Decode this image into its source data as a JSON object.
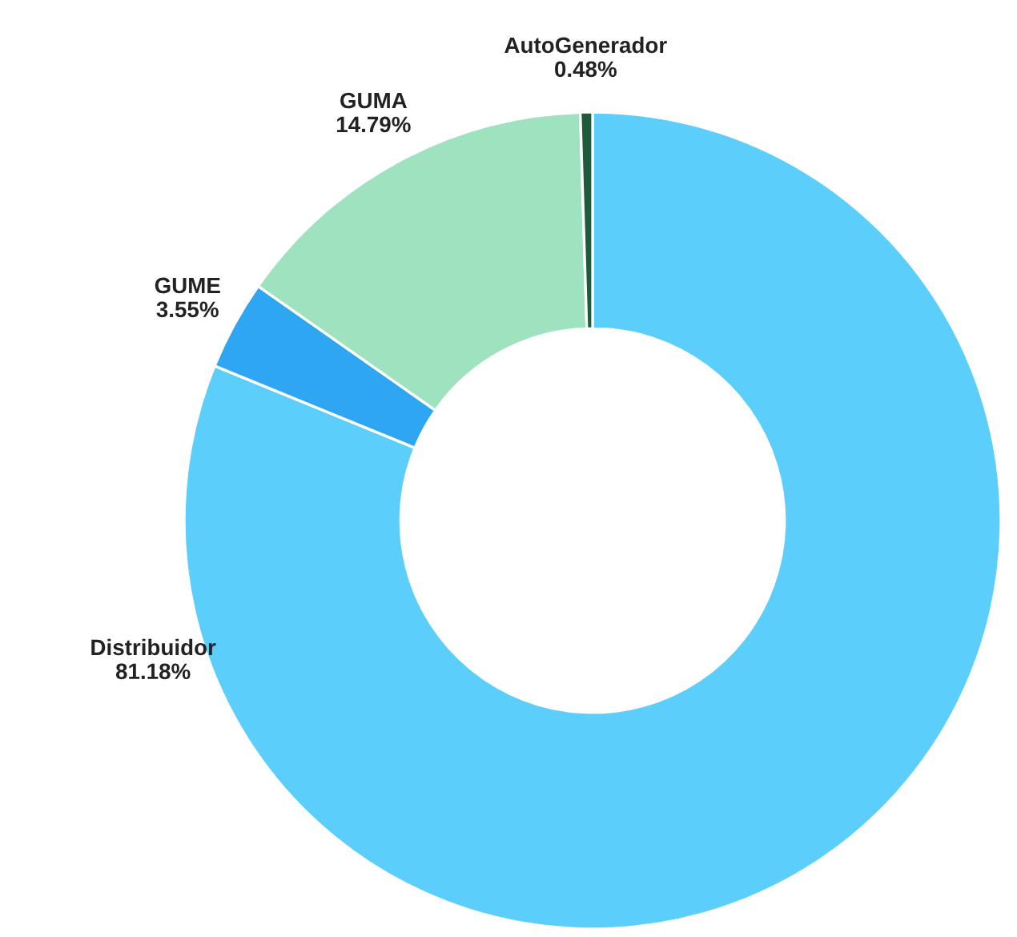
{
  "chart_data": {
    "type": "donut",
    "categories": [
      "Distribuidor",
      "GUME",
      "GUMA",
      "AutoGenerador"
    ],
    "values": [
      81.18,
      3.55,
      14.79,
      0.48
    ],
    "colors": [
      "#5ccefb",
      "#2fa6f2",
      "#9ee2c0",
      "#1f5a3a"
    ],
    "value_labels": [
      "81.18%",
      "3.55%",
      "14.79%",
      "0.48%"
    ],
    "legend": false
  }
}
